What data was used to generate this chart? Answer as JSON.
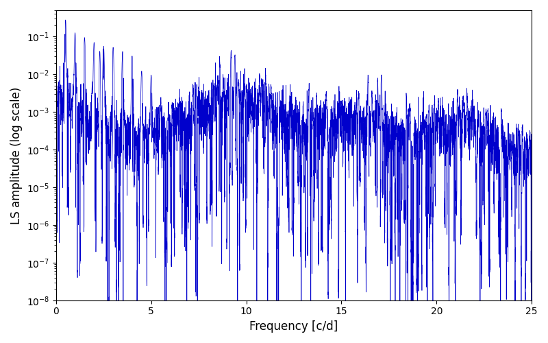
{
  "title": "",
  "xlabel": "Frequency [c/d]",
  "ylabel": "LS amplitude (log scale)",
  "xlim": [
    0,
    25
  ],
  "ylim": [
    1e-08,
    0.5
  ],
  "line_color": "#0000cc",
  "line_width": 0.5,
  "yscale": "log",
  "freq_min": 0.0,
  "freq_max": 25.0,
  "n_points": 10000,
  "seed": 12345,
  "background_color": "#ffffff",
  "figsize": [
    8.0,
    5.0
  ],
  "dpi": 100
}
